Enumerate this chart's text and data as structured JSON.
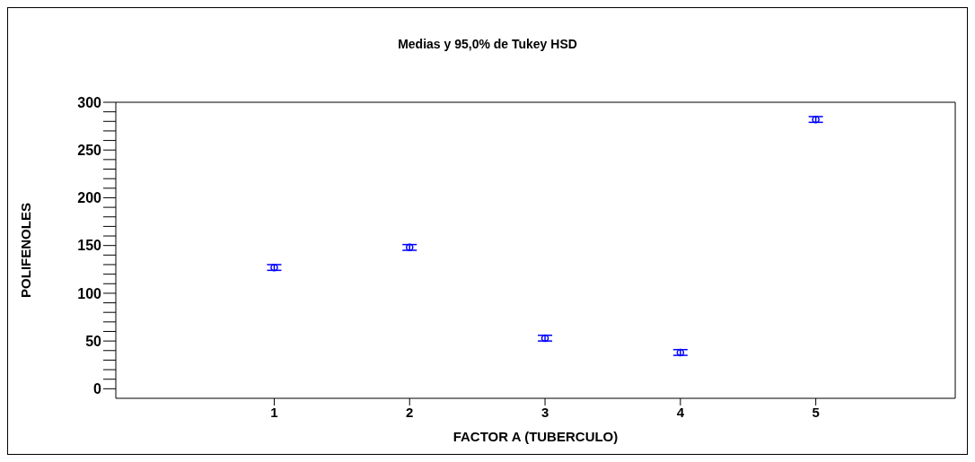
{
  "chart_data": {
    "type": "scatter",
    "title": "Medias y 95,0% de Tukey HSD",
    "xlabel": "FACTOR A (TUBERCULO)",
    "ylabel": "POLIFENOLES",
    "x": [
      1,
      2,
      3,
      4,
      5
    ],
    "color": "#0000ff",
    "values": [
      127,
      148,
      53,
      38,
      282
    ],
    "errors": [
      3,
      3,
      3,
      3,
      3
    ],
    "marker": "circle",
    "xlim": [
      -0.17,
      6.03
    ],
    "xticks": [
      1,
      2,
      3,
      4,
      5
    ],
    "ylim": [
      -10,
      300
    ],
    "yticks": [
      0,
      {
        "value": 10,
        "label": null
      },
      {
        "value": 20,
        "label": null
      },
      {
        "value": 30,
        "label": null
      },
      {
        "value": 40,
        "label": null
      },
      50,
      {
        "value": 60,
        "label": null
      },
      {
        "value": 70,
        "label": null
      },
      {
        "value": 80,
        "label": null
      },
      {
        "value": 90,
        "label": null
      },
      100,
      {
        "value": 110,
        "label": null
      },
      {
        "value": 120,
        "label": null
      },
      {
        "value": 130,
        "label": null
      },
      {
        "value": 140,
        "label": null
      },
      150,
      {
        "value": 160,
        "label": null
      },
      {
        "value": 170,
        "label": null
      },
      {
        "value": 180,
        "label": null
      },
      {
        "value": 190,
        "label": null
      },
      200,
      {
        "value": 210,
        "label": null
      },
      {
        "value": 220,
        "label": null
      },
      {
        "value": 230,
        "label": null
      },
      {
        "value": 240,
        "label": null
      },
      250,
      {
        "value": 260,
        "label": null
      },
      {
        "value": 270,
        "label": null
      },
      {
        "value": 280,
        "label": null
      },
      {
        "value": 290,
        "label": null
      },
      300
    ],
    "grid": false,
    "legend": false
  }
}
